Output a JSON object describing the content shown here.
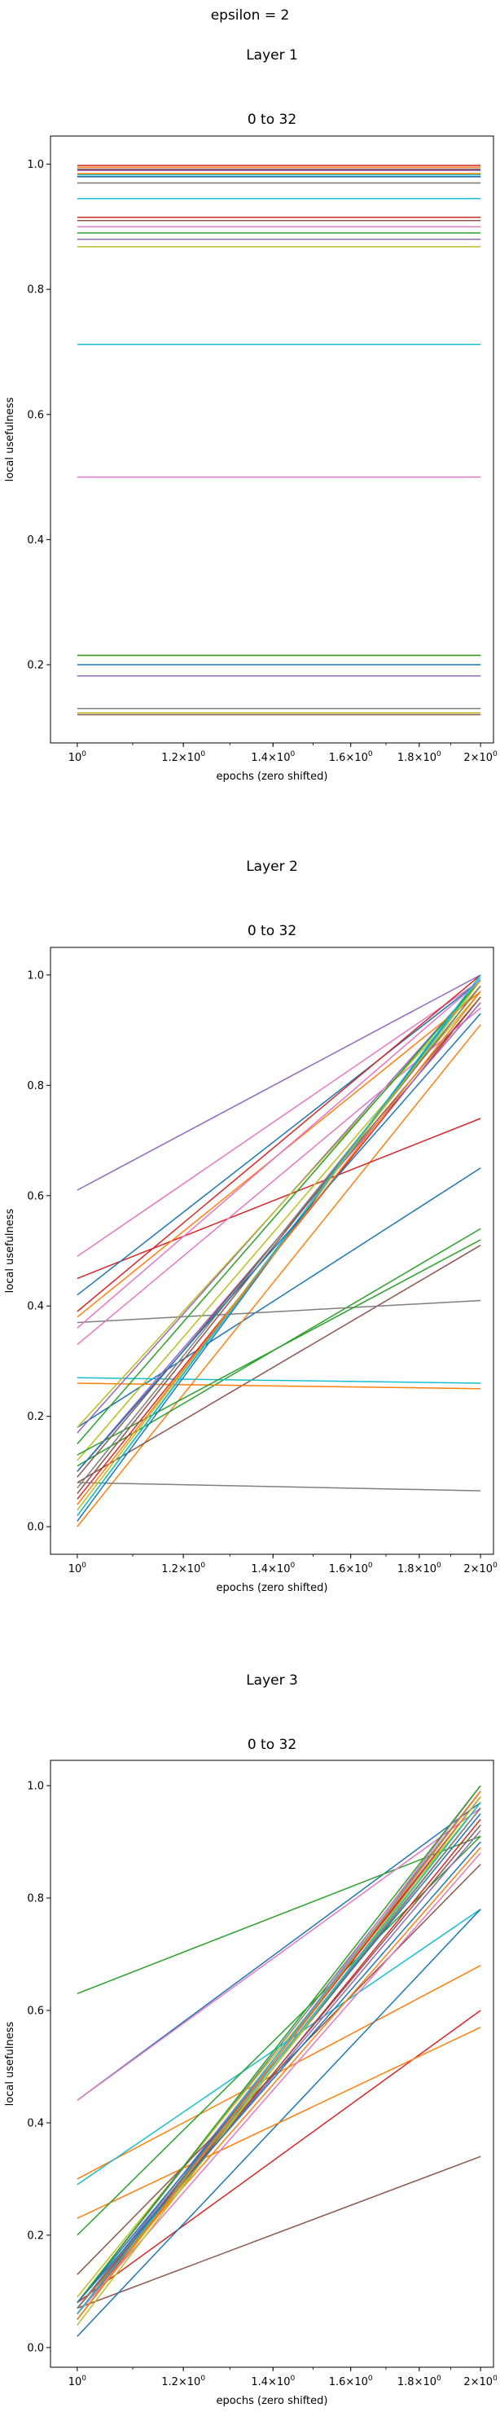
{
  "suptitle": "epsilon = 2",
  "colors": [
    "#1f77b4",
    "#ff7f0e",
    "#2ca02c",
    "#d62728",
    "#9467bd",
    "#8c564b",
    "#e377c2",
    "#7f7f7f",
    "#bcbd22",
    "#17becf"
  ],
  "chart_data": [
    {
      "type": "line",
      "panel_title": "Layer 1",
      "title": "0 to 32",
      "xlabel": "epochs (zero shifted)",
      "ylabel": "local usefulness",
      "xscale": "log",
      "x": [
        1,
        2
      ],
      "xlim": [
        0.955,
        2.045
      ],
      "ylim": [
        0.075,
        1.045
      ],
      "yticks": [
        "0.2",
        "0.4",
        "0.6",
        "0.8",
        "1.0"
      ],
      "xticks": [
        "10^0",
        "1.2×10^0",
        "1.4×10^0",
        "1.6×10^0",
        "1.8×10^0",
        "2×10^0"
      ],
      "series": [
        {
          "values": [
            0.995,
            0.995
          ]
        },
        {
          "values": [
            0.995,
            0.995
          ]
        },
        {
          "values": [
            0.99,
            0.99
          ]
        },
        {
          "values": [
            0.998,
            0.998
          ]
        },
        {
          "values": [
            0.99,
            0.99
          ]
        },
        {
          "values": [
            0.992,
            0.992
          ]
        },
        {
          "values": [
            0.98,
            0.98
          ]
        },
        {
          "values": [
            0.98,
            0.98
          ]
        },
        {
          "values": [
            0.985,
            0.985
          ]
        },
        {
          "values": [
            0.983,
            0.983
          ]
        },
        {
          "values": [
            0.945,
            0.945
          ]
        },
        {
          "values": [
            0.97,
            0.97
          ]
        },
        {
          "values": [
            0.89,
            0.89
          ]
        },
        {
          "values": [
            0.915,
            0.915
          ]
        },
        {
          "values": [
            0.88,
            0.88
          ]
        },
        {
          "values": [
            0.91,
            0.91
          ]
        },
        {
          "values": [
            0.9,
            0.9
          ]
        },
        {
          "values": [
            0.97,
            0.97
          ]
        },
        {
          "values": [
            0.868,
            0.868
          ]
        },
        {
          "values": [
            0.712,
            0.712
          ]
        },
        {
          "values": [
            0.2,
            0.2
          ]
        },
        {
          "values": [
            0.215,
            0.215
          ]
        },
        {
          "values": [
            0.215,
            0.215
          ]
        },
        {
          "values": [
            0.182,
            0.182
          ]
        },
        {
          "values": [
            0.182,
            0.182
          ]
        },
        {
          "values": [
            0.12,
            0.12
          ]
        },
        {
          "values": [
            0.5,
            0.5
          ]
        },
        {
          "values": [
            0.13,
            0.13
          ]
        },
        {
          "values": [
            0.123,
            0.123
          ]
        },
        {
          "values": [
            0.945,
            0.945
          ]
        },
        {
          "values": [
            0.98,
            0.98
          ]
        },
        {
          "values": [
            0.985,
            0.985
          ]
        }
      ]
    },
    {
      "type": "line",
      "panel_title": "Layer 2",
      "title": "0 to 32",
      "xlabel": "epochs (zero shifted)",
      "ylabel": "local usefulness",
      "xscale": "log",
      "x": [
        1,
        2
      ],
      "xlim": [
        0.955,
        2.045
      ],
      "ylim": [
        -0.05,
        1.05
      ],
      "yticks": [
        "0.0",
        "0.2",
        "0.4",
        "0.6",
        "0.8",
        "1.0"
      ],
      "xticks": [
        "10^0",
        "1.2×10^0",
        "1.4×10^0",
        "1.6×10^0",
        "1.8×10^0",
        "2×10^0"
      ],
      "series": [
        {
          "values": [
            0.18,
            0.65
          ]
        },
        {
          "values": [
            0.0,
            0.91
          ]
        },
        {
          "values": [
            0.11,
            0.54
          ]
        },
        {
          "values": [
            0.45,
            0.74
          ]
        },
        {
          "values": [
            0.61,
            1.0
          ]
        },
        {
          "values": [
            0.08,
            0.51
          ]
        },
        {
          "values": [
            0.49,
            0.99
          ]
        },
        {
          "values": [
            0.37,
            0.41
          ]
        },
        {
          "values": [
            0.12,
            0.97
          ]
        },
        {
          "values": [
            0.27,
            0.26
          ]
        },
        {
          "values": [
            0.42,
            0.99
          ]
        },
        {
          "values": [
            0.26,
            0.25
          ]
        },
        {
          "values": [
            0.13,
            0.52
          ]
        },
        {
          "values": [
            0.05,
            0.96
          ]
        },
        {
          "values": [
            0.17,
            0.99
          ]
        },
        {
          "values": [
            0.06,
            0.98
          ]
        },
        {
          "values": [
            0.33,
            0.94
          ]
        },
        {
          "values": [
            0.08,
            0.065
          ]
        },
        {
          "values": [
            0.18,
            0.98
          ]
        },
        {
          "values": [
            0.02,
            0.995
          ]
        },
        {
          "values": [
            0.01,
            1.0
          ]
        },
        {
          "values": [
            0.38,
            0.97
          ]
        },
        {
          "values": [
            0.15,
            0.99
          ]
        },
        {
          "values": [
            0.39,
            1.0
          ]
        },
        {
          "values": [
            0.1,
            0.95
          ]
        },
        {
          "values": [
            0.09,
            0.96
          ]
        },
        {
          "values": [
            0.36,
            0.99
          ]
        },
        {
          "values": [
            0.07,
            0.98
          ]
        },
        {
          "values": [
            0.03,
            0.99
          ]
        },
        {
          "values": [
            0.02,
            1.0
          ]
        },
        {
          "values": [
            0.1,
            0.93
          ]
        },
        {
          "values": [
            0.04,
            0.97
          ]
        }
      ]
    },
    {
      "type": "line",
      "panel_title": "Layer 3",
      "title": "0 to 32",
      "xlabel": "epochs (zero shifted)",
      "ylabel": "local usefulness",
      "xscale": "log",
      "x": [
        1,
        2
      ],
      "xlim": [
        0.955,
        2.045
      ],
      "ylim": [
        -0.035,
        1.045
      ],
      "yticks": [
        "0.0",
        "0.2",
        "0.4",
        "0.6",
        "0.8",
        "1.0"
      ],
      "xticks": [
        "10^0",
        "1.2×10^0",
        "1.4×10^0",
        "1.6×10^0",
        "1.8×10^0",
        "2×10^0"
      ],
      "series": [
        {
          "values": [
            0.44,
            0.97
          ]
        },
        {
          "values": [
            0.3,
            0.68
          ]
        },
        {
          "values": [
            0.63,
            0.91
          ]
        },
        {
          "values": [
            0.08,
            0.6
          ]
        },
        {
          "values": [
            0.07,
            0.98
          ]
        },
        {
          "values": [
            0.07,
            0.34
          ]
        },
        {
          "values": [
            0.44,
            0.96
          ]
        },
        {
          "values": [
            0.08,
            0.99
          ]
        },
        {
          "values": [
            0.09,
            0.97
          ]
        },
        {
          "values": [
            0.29,
            0.78
          ]
        },
        {
          "values": [
            0.02,
            0.78
          ]
        },
        {
          "values": [
            0.23,
            0.57
          ]
        },
        {
          "values": [
            0.2,
            0.91
          ]
        },
        {
          "values": [
            0.06,
            0.94
          ]
        },
        {
          "values": [
            0.07,
            0.92
          ]
        },
        {
          "values": [
            0.13,
            0.86
          ]
        },
        {
          "values": [
            0.05,
            1.0
          ]
        },
        {
          "values": [
            0.06,
            0.96
          ]
        },
        {
          "values": [
            0.05,
            0.97
          ]
        },
        {
          "values": [
            0.06,
            0.99
          ]
        },
        {
          "values": [
            0.08,
            0.95
          ]
        },
        {
          "values": [
            0.07,
            0.89
          ]
        },
        {
          "values": [
            0.08,
            1.0
          ]
        },
        {
          "values": [
            0.06,
            0.98
          ]
        },
        {
          "values": [
            0.05,
            0.99
          ]
        },
        {
          "values": [
            0.07,
            0.93
          ]
        },
        {
          "values": [
            0.06,
            0.88
          ]
        },
        {
          "values": [
            0.07,
            0.96
          ]
        },
        {
          "values": [
            0.04,
            0.98
          ]
        },
        {
          "values": [
            0.06,
            0.97
          ]
        },
        {
          "values": [
            0.08,
            0.9
          ]
        },
        {
          "values": [
            0.05,
            0.99
          ]
        }
      ]
    }
  ]
}
